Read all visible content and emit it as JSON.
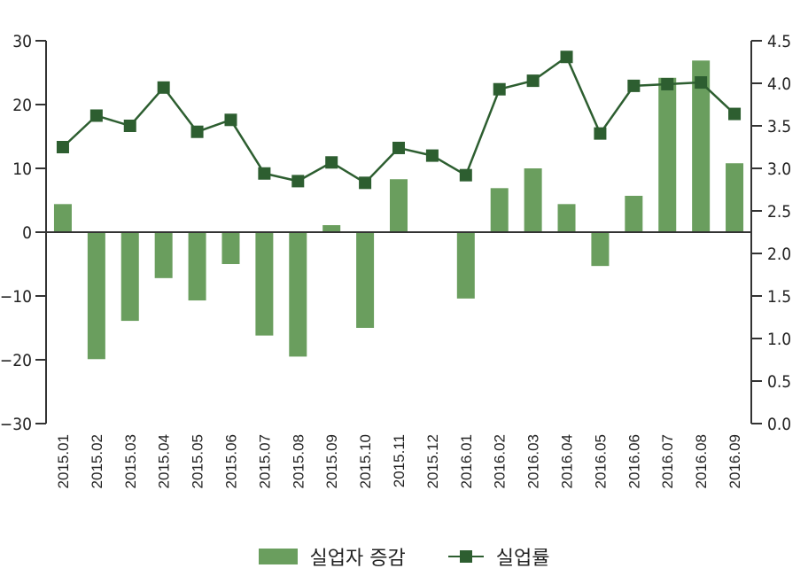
{
  "chart_data": {
    "type": "bar+line",
    "title": "",
    "categories": [
      "2015.01",
      "2015.02",
      "2015.03",
      "2015.04",
      "2015.05",
      "2015.06",
      "2015.07",
      "2015.08",
      "2015.09",
      "2015.10",
      "2015.11",
      "2015.12",
      "2016.01",
      "2016.02",
      "2016.03",
      "2016.04",
      "2016.05",
      "2016.06",
      "2016.07",
      "2016.08",
      "2016.09"
    ],
    "series": [
      {
        "name": "실업자 증감",
        "type": "bar",
        "axis": "left",
        "color": "#6a9e5e",
        "values": [
          4.4,
          -19.9,
          -13.9,
          -7.2,
          -10.7,
          -5.0,
          -16.2,
          -19.5,
          1.1,
          -15.0,
          8.3,
          -0.1,
          -10.4,
          6.9,
          10.0,
          4.4,
          -5.3,
          5.7,
          24.2,
          26.9,
          10.8
        ]
      },
      {
        "name": "실업률",
        "type": "line",
        "axis": "right",
        "color": "#2d5e30",
        "marker": "square",
        "values": [
          3.25,
          3.62,
          3.5,
          3.95,
          3.43,
          3.57,
          2.94,
          2.85,
          3.07,
          2.83,
          3.24,
          3.15,
          2.92,
          3.93,
          4.03,
          4.31,
          3.41,
          3.97,
          3.99,
          4.01,
          3.64
        ]
      }
    ],
    "left_axis": {
      "ylim": [
        -30,
        30
      ],
      "ticks": [
        30,
        20,
        10,
        0,
        -10,
        -20,
        -30
      ],
      "tick_labels": [
        "30",
        "20",
        "10",
        "0",
        "−10",
        "−20",
        "−30"
      ]
    },
    "right_axis": {
      "ylim": [
        0.0,
        4.5
      ],
      "ticks": [
        4.5,
        4.0,
        3.5,
        3.0,
        2.5,
        2.0,
        1.5,
        1.0,
        0.5,
        0.0
      ],
      "tick_labels": [
        "4.5",
        "4.0",
        "3.5",
        "3.0",
        "2.5",
        "2.0",
        "1.5",
        "1.0",
        "0.5",
        "0.0"
      ]
    },
    "xlabel": "",
    "ylabel": "",
    "grid": false,
    "legend_position": "bottom"
  },
  "legend": {
    "bar_label": "실업자 증감",
    "line_label": "실업률"
  }
}
